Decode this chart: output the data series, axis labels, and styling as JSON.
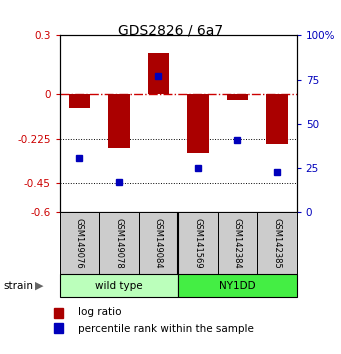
{
  "title": "GDS2826 / 6a7",
  "samples": [
    "GSM149076",
    "GSM149078",
    "GSM149084",
    "GSM141569",
    "GSM142384",
    "GSM142385"
  ],
  "log_ratios": [
    -0.07,
    -0.27,
    0.21,
    -0.3,
    -0.03,
    -0.25
  ],
  "percentile_ranks": [
    31,
    17,
    77,
    25,
    41,
    23
  ],
  "groups": [
    {
      "name": "wild type",
      "indices": [
        0,
        1,
        2
      ],
      "color": "#bbffbb"
    },
    {
      "name": "NY1DD",
      "indices": [
        3,
        4,
        5
      ],
      "color": "#44ee44"
    }
  ],
  "ylim": [
    -0.6,
    0.3
  ],
  "yticks_left": [
    0.3,
    0,
    -0.225,
    -0.45,
    -0.6
  ],
  "yticks_right": [
    100,
    75,
    50,
    25,
    0
  ],
  "bar_color": "#aa0000",
  "dot_color": "#0000bb",
  "zero_line_color": "#cc0000",
  "bar_width": 0.55,
  "legend_bar_label": "log ratio",
  "legend_dot_label": "percentile rank within the sample"
}
